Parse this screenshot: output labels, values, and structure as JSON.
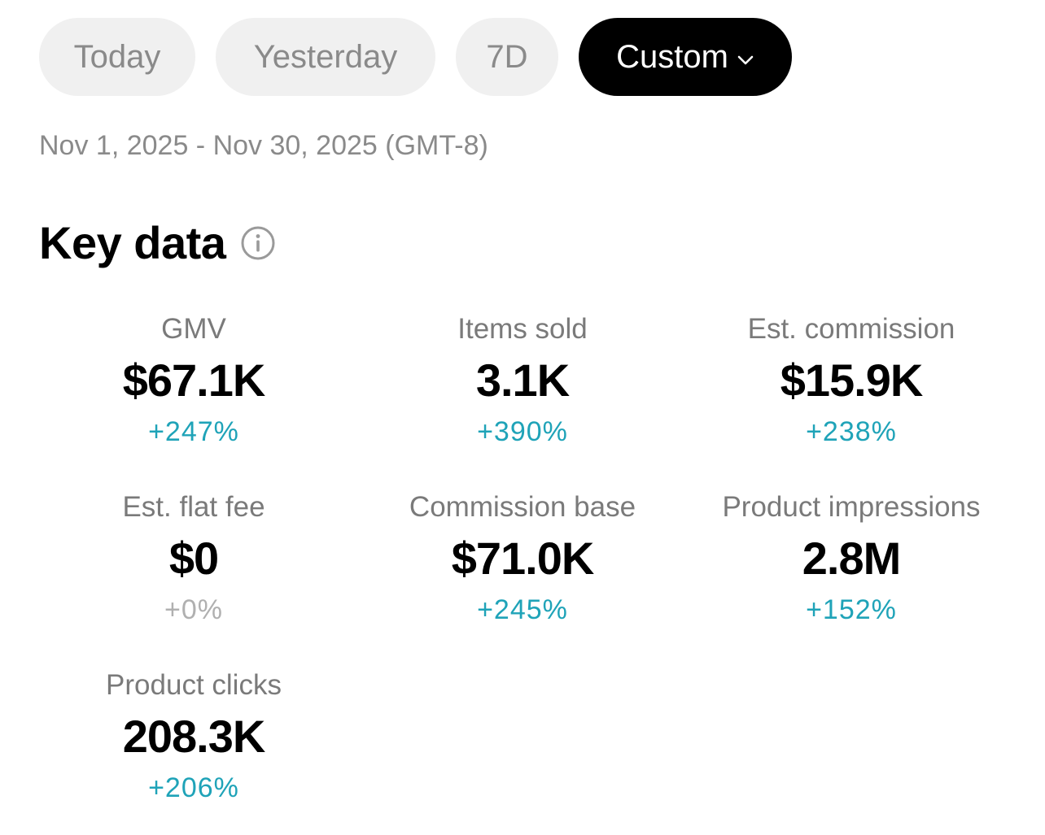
{
  "colors": {
    "positive": "#1fa3b8",
    "neutral": "#b0b0b0",
    "label": "#7a7a7a",
    "pill_bg": "#f0f0f0",
    "pill_active_bg": "#000000"
  },
  "filters": {
    "tabs": [
      {
        "label": "Today",
        "active": false
      },
      {
        "label": "Yesterday",
        "active": false
      },
      {
        "label": "7D",
        "active": false
      },
      {
        "label": "Custom",
        "active": true,
        "icon": "chevron-down-icon"
      }
    ]
  },
  "date_range": "Nov 1, 2025 - Nov 30, 2025 (GMT-8)",
  "section": {
    "title": "Key data",
    "info_icon": "info-icon"
  },
  "metrics": [
    {
      "label": "GMV",
      "value": "$67.1K",
      "change": "+247%",
      "trend": "positive"
    },
    {
      "label": "Items sold",
      "value": "3.1K",
      "change": "+390%",
      "trend": "positive"
    },
    {
      "label": "Est. commission",
      "value": "$15.9K",
      "change": "+238%",
      "trend": "positive"
    },
    {
      "label": "Est. flat fee",
      "value": "$0",
      "change": "+0%",
      "trend": "neutral"
    },
    {
      "label": "Commission base",
      "value": "$71.0K",
      "change": "+245%",
      "trend": "positive"
    },
    {
      "label": "Product impressions",
      "value": "2.8M",
      "change": "+152%",
      "trend": "positive"
    },
    {
      "label": "Product clicks",
      "value": "208.3K",
      "change": "+206%",
      "trend": "positive"
    }
  ]
}
